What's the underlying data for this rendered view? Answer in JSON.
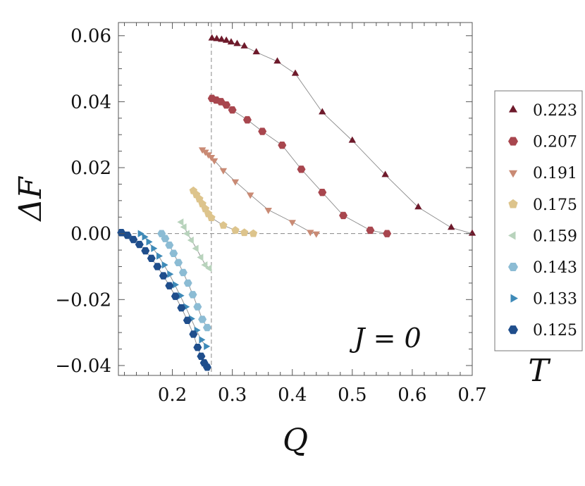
{
  "chart_data": {
    "type": "scatter",
    "xlabel": "Q",
    "ylabel": "ΔF",
    "xlim": [
      0.11,
      0.7
    ],
    "ylim": [
      -0.043,
      0.064
    ],
    "xticks": [
      0.2,
      0.3,
      0.4,
      0.5,
      0.6,
      0.7
    ],
    "xtick_labels": [
      "0.2",
      "0.3",
      "0.4",
      "0.5",
      "0.6",
      "0.7"
    ],
    "yticks": [
      -0.04,
      -0.02,
      0.0,
      0.02,
      0.04,
      0.06
    ],
    "ytick_labels": [
      "−0.04",
      "−0.02",
      "0.00",
      "0.02",
      "0.04",
      "0.06"
    ],
    "grid": false,
    "annotation": "J = 0",
    "legend_title": "T",
    "legend_position": "right",
    "reference_lines": {
      "vertical_x": 0.265,
      "horizontal_y": 0.0,
      "style": "dashed"
    },
    "series": [
      {
        "name": "0.223",
        "marker": "triangle-up",
        "color": "#6e1a2b",
        "x": [
          0.266,
          0.274,
          0.282,
          0.29,
          0.298,
          0.308,
          0.32,
          0.34,
          0.375,
          0.405,
          0.45,
          0.5,
          0.555,
          0.61,
          0.665,
          0.7
        ],
        "y": [
          0.0592,
          0.059,
          0.0588,
          0.0585,
          0.058,
          0.0575,
          0.0568,
          0.055,
          0.0522,
          0.0485,
          0.0368,
          0.0282,
          0.0178,
          0.008,
          0.0018,
          0.0
        ]
      },
      {
        "name": "0.207",
        "marker": "hexagon",
        "color": "#a8464e",
        "x": [
          0.266,
          0.273,
          0.281,
          0.29,
          0.3,
          0.325,
          0.35,
          0.383,
          0.415,
          0.45,
          0.485,
          0.53,
          0.558
        ],
        "y": [
          0.041,
          0.0405,
          0.04,
          0.039,
          0.0375,
          0.0345,
          0.031,
          0.0268,
          0.0195,
          0.0125,
          0.0055,
          0.001,
          0.0
        ]
      },
      {
        "name": "0.191",
        "marker": "triangle-down",
        "color": "#c98a74",
        "x": [
          0.25,
          0.255,
          0.26,
          0.265,
          0.27,
          0.285,
          0.305,
          0.33,
          0.36,
          0.4,
          0.43,
          0.44
        ],
        "y": [
          0.0255,
          0.0248,
          0.024,
          0.0232,
          0.0222,
          0.0192,
          0.0158,
          0.0118,
          0.0072,
          0.0035,
          0.0005,
          0.0
        ]
      },
      {
        "name": "0.175",
        "marker": "pentagon",
        "color": "#ddc48c",
        "x": [
          0.235,
          0.24,
          0.245,
          0.25,
          0.255,
          0.26,
          0.265,
          0.285,
          0.305,
          0.32,
          0.335
        ],
        "y": [
          0.013,
          0.0118,
          0.0105,
          0.009,
          0.0075,
          0.006,
          0.0048,
          0.0025,
          0.001,
          0.0003,
          0.0
        ]
      },
      {
        "name": "0.159",
        "marker": "triangle-left",
        "color": "#b8d3bc",
        "x": [
          0.215,
          0.22,
          0.225,
          0.232,
          0.24,
          0.248,
          0.255,
          0.262
        ],
        "y": [
          0.0035,
          0.002,
          0.0,
          -0.002,
          -0.0045,
          -0.0072,
          -0.0095,
          -0.0105
        ]
      },
      {
        "name": "0.143",
        "marker": "hexagon",
        "color": "#8cbcd4",
        "x": [
          0.182,
          0.188,
          0.195,
          0.202,
          0.21,
          0.218,
          0.226,
          0.234,
          0.242,
          0.25,
          0.258
        ],
        "y": [
          0.0,
          -0.0015,
          -0.0035,
          -0.006,
          -0.0088,
          -0.0118,
          -0.015,
          -0.0185,
          -0.0222,
          -0.026,
          -0.0285
        ]
      },
      {
        "name": "0.133",
        "marker": "triangle-right",
        "color": "#3e8ab8",
        "x": [
          0.146,
          0.153,
          0.16,
          0.168,
          0.177,
          0.186,
          0.195,
          0.204,
          0.213,
          0.222,
          0.231,
          0.24,
          0.248,
          0.256
        ],
        "y": [
          0.0,
          -0.001,
          -0.0025,
          -0.0045,
          -0.0068,
          -0.0095,
          -0.0123,
          -0.0155,
          -0.0188,
          -0.0222,
          -0.0258,
          -0.0293,
          -0.0322,
          -0.0342
        ]
      },
      {
        "name": "0.125",
        "marker": "hexagon",
        "color": "#1f4e8c",
        "x": [
          0.115,
          0.125,
          0.135,
          0.145,
          0.155,
          0.165,
          0.175,
          0.185,
          0.195,
          0.205,
          0.215,
          0.225,
          0.235,
          0.242,
          0.248,
          0.253,
          0.258
        ],
        "y": [
          0.0003,
          -0.0005,
          -0.0018,
          -0.0033,
          -0.0052,
          -0.0075,
          -0.01,
          -0.0128,
          -0.0158,
          -0.019,
          -0.0225,
          -0.0263,
          -0.0305,
          -0.0345,
          -0.0372,
          -0.0392,
          -0.0405
        ]
      }
    ]
  }
}
